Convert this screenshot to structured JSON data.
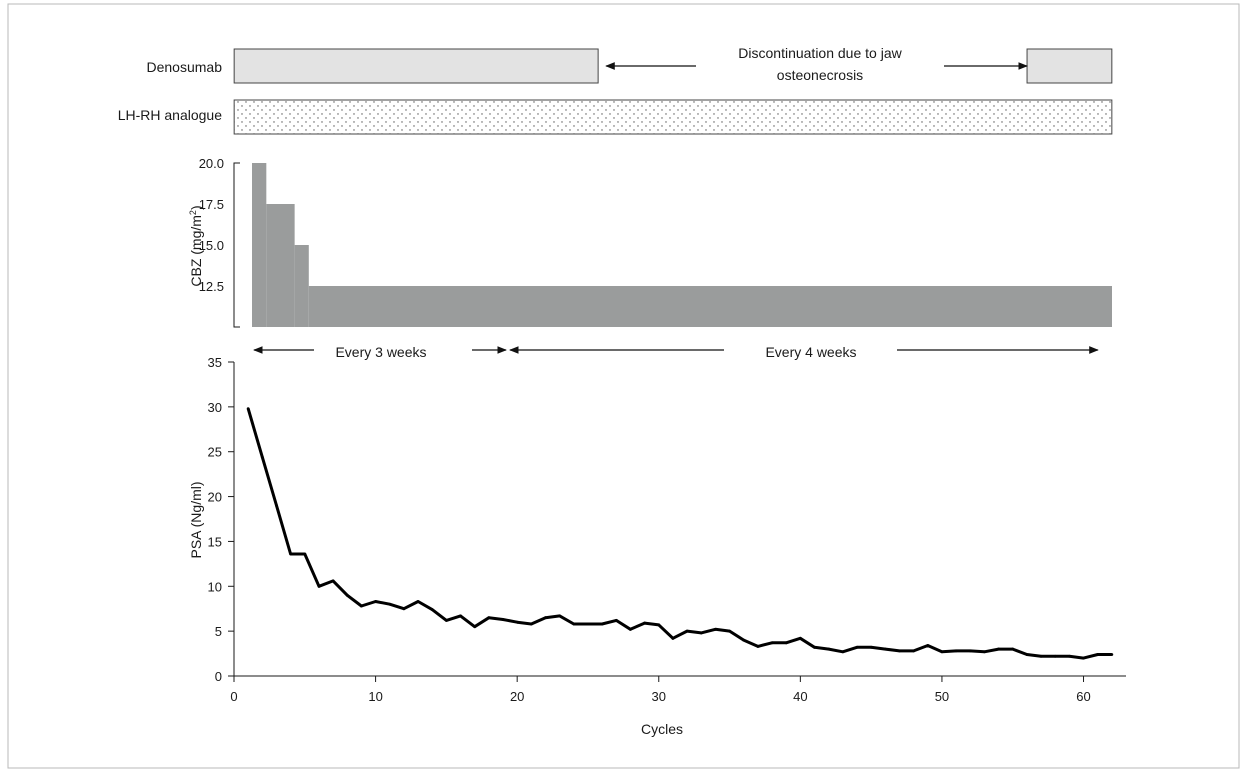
{
  "chart_data": [
    {
      "type": "bar",
      "title": "",
      "rows": [
        {
          "label": "Denosumab",
          "segments": [
            {
              "start": 1,
              "end": 26
            },
            {
              "start": 57,
              "end": 62
            }
          ],
          "gap_note": {
            "lines": [
              "Discontinuation due to jaw",
              "osteonecrosis"
            ],
            "start": 26,
            "end": 57
          }
        },
        {
          "label": "LH-RH analogue",
          "segments": [
            {
              "start": 1,
              "end": 62
            }
          ]
        }
      ]
    },
    {
      "type": "area",
      "ylabel": "CBZ (mg/m",
      "ylabel_sup": "2",
      "ylabel_close": ")",
      "yticks": [
        {
          "value": 12.5,
          "label": "12.5"
        },
        {
          "value": 15,
          "label": "15.0"
        },
        {
          "value": 17.5,
          "label": "17.5"
        },
        {
          "value": 20,
          "label": "20.0"
        }
      ],
      "ylim": [
        10,
        20
      ],
      "xlim": [
        0,
        63
      ],
      "steps": [
        {
          "start": 1,
          "end": 2,
          "value": 20
        },
        {
          "start": 2,
          "end": 4,
          "value": 17.5
        },
        {
          "start": 4,
          "end": 5,
          "value": 15
        },
        {
          "start": 5,
          "end": 62,
          "value": 12.5
        }
      ],
      "schedule": [
        {
          "label": "Every 3 weeks",
          "start": 1,
          "end": 19
        },
        {
          "label": "Every 4 weeks",
          "start": 19,
          "end": 62
        }
      ]
    },
    {
      "type": "line",
      "xlabel": "Cycles",
      "ylabel": "PSA (Ng/ml)",
      "xlim": [
        0,
        63
      ],
      "ylim": [
        0,
        35
      ],
      "xticks": [
        0,
        10,
        20,
        30,
        40,
        50,
        60
      ],
      "yticks": [
        0,
        5,
        10,
        15,
        20,
        25,
        30,
        35
      ],
      "grid": false,
      "series": [
        {
          "x": [
            1,
            2,
            3,
            4,
            5,
            6,
            7,
            8,
            9,
            10,
            11,
            12,
            13,
            14,
            15,
            16,
            17,
            18,
            19,
            20,
            21,
            22,
            23,
            24,
            25,
            26,
            27,
            28,
            29,
            30,
            31,
            32,
            33,
            34,
            35,
            36,
            37,
            38,
            39,
            40,
            41,
            42,
            43,
            44,
            45,
            46,
            47,
            48,
            49,
            50,
            51,
            52,
            53,
            54,
            55,
            56,
            57,
            58,
            59,
            60,
            61,
            62
          ],
          "values": [
            29.8,
            24.4,
            19.0,
            13.6,
            13.6,
            10.0,
            10.6,
            9.0,
            7.8,
            8.3,
            8.0,
            7.5,
            8.3,
            7.4,
            6.2,
            6.7,
            5.5,
            6.5,
            6.3,
            6.0,
            5.8,
            6.5,
            6.7,
            5.8,
            5.8,
            5.8,
            6.2,
            5.2,
            5.9,
            5.7,
            4.2,
            5.0,
            4.8,
            5.2,
            5.0,
            4.0,
            3.3,
            3.7,
            3.7,
            4.2,
            3.2,
            3.0,
            2.7,
            3.2,
            3.2,
            3.0,
            2.8,
            2.8,
            3.4,
            2.7,
            2.8,
            2.8,
            2.7,
            3.0,
            3.0,
            2.4,
            2.2,
            2.2,
            2.2,
            2.0,
            2.4,
            2.4
          ]
        }
      ]
    }
  ]
}
